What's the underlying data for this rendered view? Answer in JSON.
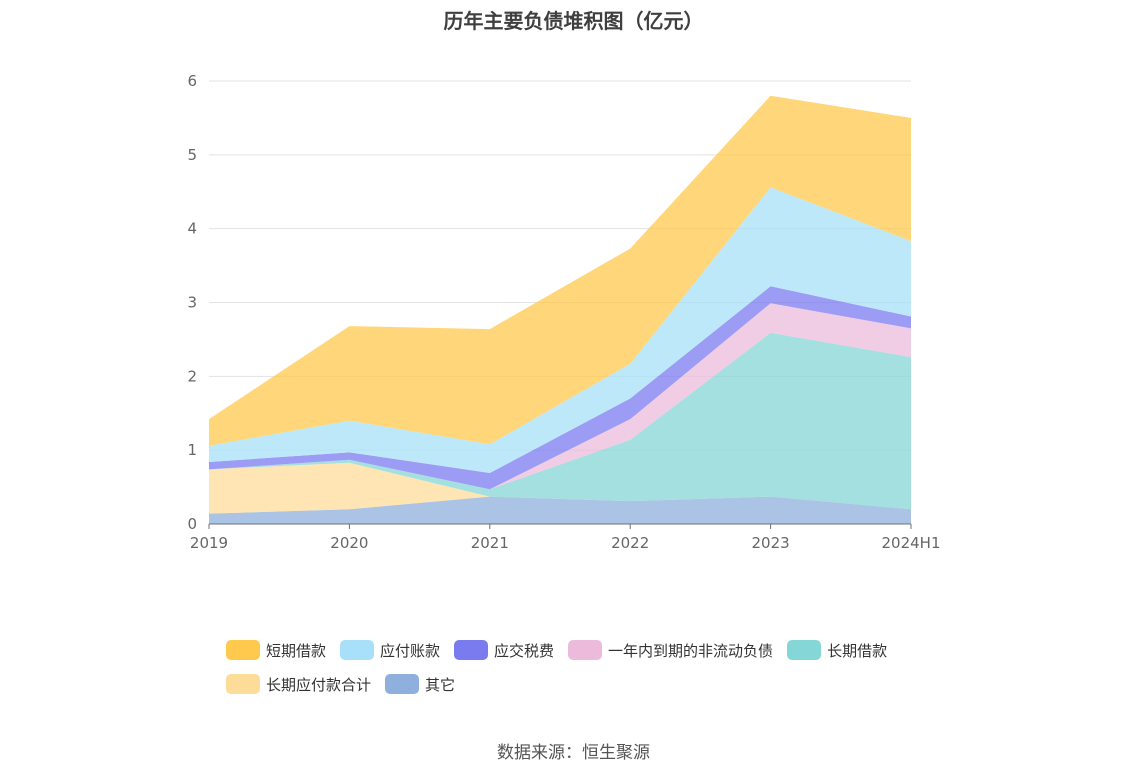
{
  "title": "历年主要负债堆积图（亿元）",
  "source": "数据来源：恒生聚源",
  "chart_data": {
    "type": "area",
    "stacked": true,
    "title": "历年主要负债堆积图（亿元）",
    "categories": [
      "2019",
      "2020",
      "2021",
      "2022",
      "2023",
      "2024H1"
    ],
    "ylim": [
      0,
      6
    ],
    "yticks": [
      0,
      1,
      2,
      3,
      4,
      5,
      6
    ],
    "grid": true,
    "legend_position": "bottom",
    "series": [
      {
        "name": "其它",
        "color": "#8fb0dc",
        "values": [
          0.14,
          0.2,
          0.37,
          0.31,
          0.37,
          0.2
        ]
      },
      {
        "name": "长期应付款合计",
        "color": "#fddc9a",
        "values": [
          0.6,
          0.63,
          0.0,
          0.0,
          0.0,
          0.0
        ]
      },
      {
        "name": "长期借款",
        "color": "#85d6d6",
        "values": [
          0.0,
          0.04,
          0.1,
          0.83,
          2.22,
          2.06
        ]
      },
      {
        "name": "一年内到期的非流动负债",
        "color": "#ecbbdc",
        "values": [
          0.0,
          0.0,
          0.0,
          0.28,
          0.4,
          0.39
        ]
      },
      {
        "name": "应交税费",
        "color": "#7b7bf0",
        "values": [
          0.1,
          0.1,
          0.22,
          0.28,
          0.23,
          0.16
        ]
      },
      {
        "name": "应付账款",
        "color": "#a7e0f8",
        "values": [
          0.22,
          0.43,
          0.39,
          0.47,
          1.34,
          1.02
        ]
      },
      {
        "name": "短期借款",
        "color": "#ffc94d",
        "values": [
          0.36,
          1.28,
          1.56,
          1.56,
          1.24,
          1.67
        ]
      }
    ],
    "legend_order": [
      "短期借款",
      "应付账款",
      "应交税费",
      "一年内到期的非流动负债",
      "长期借款",
      "长期应付款合计",
      "其它"
    ]
  }
}
